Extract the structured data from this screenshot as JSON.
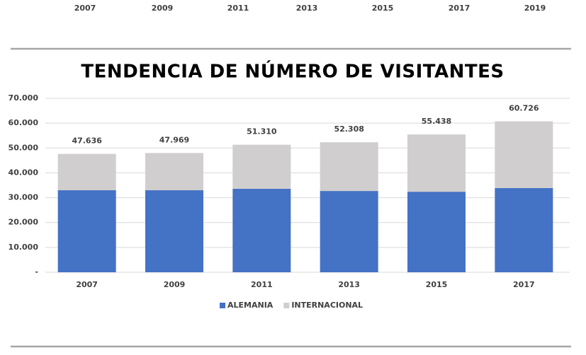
{
  "top_strip": {
    "categories": [
      "2007",
      "2009",
      "2011",
      "2013",
      "2015",
      "2017",
      "2019"
    ]
  },
  "chart_data": {
    "type": "stacked_bar",
    "title": "TENDENCIA DE NÚMERO DE VISITANTES",
    "categories": [
      "2007",
      "2009",
      "2011",
      "2013",
      "2015",
      "2017"
    ],
    "series": [
      {
        "name": "ALEMANIA",
        "color": "#4472c4",
        "values": [
          33000,
          33000,
          33600,
          32700,
          32400,
          33900
        ]
      },
      {
        "name": "INTERNACIONAL",
        "color": "#d0cece",
        "values": [
          14636,
          14969,
          17710,
          19608,
          23038,
          26826
        ]
      }
    ],
    "totals": {
      "values": [
        47636,
        47969,
        51310,
        52308,
        55438,
        60726
      ],
      "value_labels": [
        "47.636",
        "47.969",
        "51.310",
        "52.308",
        "55.438",
        "60.726"
      ]
    },
    "ylim": [
      0,
      70000
    ],
    "yticks": [
      {
        "value": 0,
        "label": "-"
      },
      {
        "value": 10000,
        "label": "10.000"
      },
      {
        "value": 20000,
        "label": "20.000"
      },
      {
        "value": 30000,
        "label": "30.000"
      },
      {
        "value": 40000,
        "label": "40.000"
      },
      {
        "value": 50000,
        "label": "50.000"
      },
      {
        "value": 60000,
        "label": "60.000"
      },
      {
        "value": 70000,
        "label": "70.000"
      }
    ],
    "grid": true,
    "legend": "bottom"
  }
}
